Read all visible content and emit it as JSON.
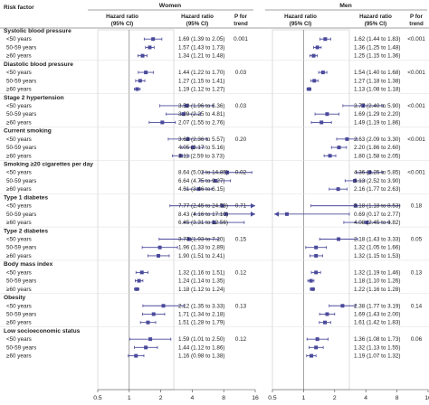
{
  "header": {
    "risk_factor": "Risk factor",
    "women": "Women",
    "men": "Men",
    "hr_line1": "Hazard ratio",
    "hr_line2": "(95% CI)",
    "p_line1": "P for",
    "p_line2": "trend"
  },
  "chart_data": {
    "type": "forest",
    "xscale": "log2",
    "xlim": [
      0.5,
      16
    ],
    "ticks": [
      "0.5",
      "1",
      "2",
      "4",
      "8",
      "16"
    ],
    "reference_line": 1,
    "panels": [
      "Women",
      "Men"
    ],
    "groups": [
      {
        "label": "Systolic blood pressure",
        "women_p": "0.001",
        "men_p": "<0.001",
        "rows": [
          {
            "label": "<50 years",
            "women": {
              "hr": 1.69,
              "lo": 1.39,
              "hi": 2.05,
              "text": "1.69 (1.39 to 2.05)"
            },
            "men": {
              "hr": 1.62,
              "lo": 1.44,
              "hi": 1.83,
              "text": "1.62 (1.44 to 1.83)"
            }
          },
          {
            "label": "50-59 years",
            "women": {
              "hr": 1.57,
              "lo": 1.43,
              "hi": 1.73,
              "text": "1.57 (1.43 to 1.73)"
            },
            "men": {
              "hr": 1.36,
              "lo": 1.25,
              "hi": 1.48,
              "text": "1.36 (1.25 to 1.48)"
            }
          },
          {
            "label": "≥60 years",
            "women": {
              "hr": 1.34,
              "lo": 1.21,
              "hi": 1.48,
              "text": "1.34 (1.21 to 1.48)"
            },
            "men": {
              "hr": 1.25,
              "lo": 1.15,
              "hi": 1.36,
              "text": "1.25 (1.15 to 1.36)"
            }
          }
        ]
      },
      {
        "label": "Diastolic blood pressure",
        "women_p": "0.03",
        "men_p": "<0.001",
        "rows": [
          {
            "label": "<50 years",
            "women": {
              "hr": 1.44,
              "lo": 1.22,
              "hi": 1.7,
              "text": "1.44 (1.22 to 1.70)"
            },
            "men": {
              "hr": 1.54,
              "lo": 1.4,
              "hi": 1.68,
              "text": "1.54 (1.40 to 1.68)"
            }
          },
          {
            "label": "50-59 years",
            "women": {
              "hr": 1.27,
              "lo": 1.15,
              "hi": 1.41,
              "text": "1.27 (1.15 to 1.41)"
            },
            "men": {
              "hr": 1.27,
              "lo": 1.18,
              "hi": 1.38,
              "text": "1.27 (1.18 to 1.38)"
            }
          },
          {
            "label": "≥60 years",
            "women": {
              "hr": 1.19,
              "lo": 1.12,
              "hi": 1.27,
              "text": "1.19 (1.12 to 1.27)"
            },
            "men": {
              "hr": 1.13,
              "lo": 1.08,
              "hi": 1.18,
              "text": "1.13 (1.08 to 1.18)"
            }
          }
        ]
      },
      {
        "label": "Stage 2 hypertension",
        "women_p": "0.03",
        "men_p": "<0.001",
        "rows": [
          {
            "label": "<50 years",
            "women": {
              "hr": 3.53,
              "lo": 1.96,
              "hi": 6.36,
              "text": "3.53 (1.96 to 6.36)"
            },
            "men": {
              "hr": 3.77,
              "lo": 2.4,
              "hi": 5.9,
              "text": "3.77 (2.40 to 5.90)"
            }
          },
          {
            "label": "50-59 years",
            "women": {
              "hr": 3.29,
              "lo": 2.25,
              "hi": 4.81,
              "text": "3.29 (2.25 to 4.81)"
            },
            "men": {
              "hr": 1.69,
              "lo": 1.29,
              "hi": 2.2,
              "text": "1.69 (1.29 to 2.20)"
            }
          },
          {
            "label": "≥60 years",
            "women": {
              "hr": 2.07,
              "lo": 1.55,
              "hi": 2.76,
              "text": "2.07 (1.55 to 2.76)"
            },
            "men": {
              "hr": 1.49,
              "lo": 1.19,
              "hi": 1.86,
              "text": "1.49 (1.19 to 1.86)"
            }
          }
        ]
      },
      {
        "label": "Current smoking",
        "women_p": "0.20",
        "men_p": "<0.001",
        "rows": [
          {
            "label": "<50 years",
            "women": {
              "hr": 3.63,
              "lo": 2.36,
              "hi": 5.57,
              "text": "3.63 (2.36 to 5.57)"
            },
            "men": {
              "hr": 2.63,
              "lo": 2.09,
              "hi": 3.3,
              "text": "2.63 (2.09 to 3.30)"
            }
          },
          {
            "label": "50-59 years",
            "women": {
              "hr": 4.05,
              "lo": 3.17,
              "hi": 5.16,
              "text": "4.05 (3.17 to 5.16)"
            },
            "men": {
              "hr": 2.2,
              "lo": 1.86,
              "hi": 2.6,
              "text": "2.20 (1.86 to 2.60)"
            }
          },
          {
            "label": "≥60 years",
            "women": {
              "hr": 3.11,
              "lo": 2.59,
              "hi": 3.73,
              "text": "3.11 (2.59 to 3.73)"
            },
            "men": {
              "hr": 1.8,
              "lo": 1.58,
              "hi": 2.05,
              "text": "1.80 (1.58 to 2.05)"
            }
          }
        ]
      },
      {
        "label": "Smoking ≥20 cigarettes per day",
        "women_p": "0.02",
        "men_p": "<0.001",
        "rows": [
          {
            "label": "<50 years",
            "women": {
              "hr": 8.64,
              "lo": 5.02,
              "hi": 14.85,
              "text": "8.64 (5.02 to 14.85)"
            },
            "men": {
              "hr": 4.36,
              "lo": 3.25,
              "hi": 5.85,
              "text": "4.36 (3.25 to 5.85)"
            }
          },
          {
            "label": "50-59 years",
            "women": {
              "hr": 6.64,
              "lo": 4.75,
              "hi": 9.27,
              "text": "6.64 (4.75 to 9.27)"
            },
            "men": {
              "hr": 3.13,
              "lo": 2.52,
              "hi": 3.9,
              "text": "3.13 (2.52 to 3.90)"
            }
          },
          {
            "label": "≥60 years",
            "women": {
              "hr": 4.61,
              "lo": 3.46,
              "hi": 6.15,
              "text": "4.61 (3.46 to 6.15)"
            },
            "men": {
              "hr": 2.16,
              "lo": 1.77,
              "hi": 2.63,
              "text": "2.16 (1.77 to 2.63)"
            }
          }
        ]
      },
      {
        "label": "Type 1 diabetes",
        "women_p": "0.71",
        "men_p": "0.18",
        "rows": [
          {
            "label": "<50 years",
            "women": {
              "hr": 7.77,
              "lo": 2.45,
              "hi": 24.58,
              "text": "7.77 (2.45 to 24.58)"
            },
            "men": {
              "hr": 3.18,
              "lo": 1.18,
              "hi": 8.53,
              "text": "3.18 (1.18 to 8.53)"
            }
          },
          {
            "label": "50-59 years",
            "women": {
              "hr": 8.43,
              "lo": 4.16,
              "hi": 17.1,
              "text": "8.43 (4.16 to 17.10)"
            },
            "men": {
              "hr": 0.69,
              "lo": 0.17,
              "hi": 2.77,
              "text": "0.69 (0.17 to 2.77)"
            }
          },
          {
            "label": "≥60 years",
            "women": {
              "hr": 6.45,
              "lo": 3.31,
              "hi": 12.56,
              "text": "6.45 (3.31 to 12.56)"
            },
            "men": {
              "hr": 4.08,
              "lo": 2.45,
              "hi": 6.82,
              "text": "4.08 (2.45 to 6.82)"
            }
          }
        ]
      },
      {
        "label": "Type 2 diabetes",
        "women_p": "0.15",
        "men_p": "0.05",
        "rows": [
          {
            "label": "<50 years",
            "women": {
              "hr": 3.73,
              "lo": 1.93,
              "hi": 7.2,
              "text": "3.73 (1.93 to 7.20)"
            },
            "men": {
              "hr": 2.18,
              "lo": 1.43,
              "hi": 3.33,
              "text": "2.18 (1.43 to 3.33)"
            }
          },
          {
            "label": "50-59 years",
            "women": {
              "hr": 1.96,
              "lo": 1.33,
              "hi": 2.89,
              "text": "1.96 (1.33 to 2.89)"
            },
            "men": {
              "hr": 1.32,
              "lo": 1.05,
              "hi": 1.66,
              "text": "1.32 (1.05 to 1.66)"
            }
          },
          {
            "label": "≥60 years",
            "women": {
              "hr": 1.9,
              "lo": 1.51,
              "hi": 2.41,
              "text": "1.90 (1.51 to 2.41)"
            },
            "men": {
              "hr": 1.32,
              "lo": 1.15,
              "hi": 1.53,
              "text": "1.32 (1.15 to 1.53)"
            }
          }
        ]
      },
      {
        "label": "Body mass index",
        "women_p": "0.12",
        "men_p": "0.13",
        "rows": [
          {
            "label": "<50 years",
            "women": {
              "hr": 1.32,
              "lo": 1.16,
              "hi": 1.51,
              "text": "1.32 (1.16 to 1.51)"
            },
            "men": {
              "hr": 1.32,
              "lo": 1.19,
              "hi": 1.46,
              "text": "1.32 (1.19 to 1.46)"
            }
          },
          {
            "label": "50-59 years",
            "women": {
              "hr": 1.24,
              "lo": 1.14,
              "hi": 1.35,
              "text": "1.24 (1.14 to 1.35)"
            },
            "men": {
              "hr": 1.18,
              "lo": 1.1,
              "hi": 1.26,
              "text": "1.18 (1.10 to 1.26)"
            }
          },
          {
            "label": "≥60 years",
            "women": {
              "hr": 1.18,
              "lo": 1.12,
              "hi": 1.24,
              "text": "1.18 (1.12 to 1.24)"
            },
            "men": {
              "hr": 1.22,
              "lo": 1.16,
              "hi": 1.28,
              "text": "1.22 (1.16 to 1.28)"
            }
          }
        ]
      },
      {
        "label": "Obesity",
        "women_p": "0.13",
        "men_p": "0.14",
        "rows": [
          {
            "label": "<50 years",
            "women": {
              "hr": 2.12,
              "lo": 1.35,
              "hi": 3.33,
              "text": "2.12 (1.35 to 3.33)"
            },
            "men": {
              "hr": 2.38,
              "lo": 1.77,
              "hi": 3.19,
              "text": "2.38 (1.77 to 3.19)"
            }
          },
          {
            "label": "50-59 years",
            "women": {
              "hr": 1.71,
              "lo": 1.34,
              "hi": 2.18,
              "text": "1.71 (1.34 to 2.18)"
            },
            "men": {
              "hr": 1.69,
              "lo": 1.43,
              "hi": 2.0,
              "text": "1.69 (1.43 to 2.00)"
            }
          },
          {
            "label": "≥60 years",
            "women": {
              "hr": 1.51,
              "lo": 1.28,
              "hi": 1.79,
              "text": "1.51 (1.28 to 1.79)"
            },
            "men": {
              "hr": 1.61,
              "lo": 1.42,
              "hi": 1.83,
              "text": "1.61 (1.42 to 1.83)"
            }
          }
        ]
      },
      {
        "label": "Low socioeconomic status",
        "women_p": "0.12",
        "men_p": "0.06",
        "rows": [
          {
            "label": "<50 years",
            "women": {
              "hr": 1.59,
              "lo": 1.01,
              "hi": 2.5,
              "text": "1.59 (1.01 to 2.50)"
            },
            "men": {
              "hr": 1.36,
              "lo": 1.08,
              "hi": 1.73,
              "text": "1.36 (1.08 to 1.73)"
            }
          },
          {
            "label": "50-59 years",
            "women": {
              "hr": 1.44,
              "lo": 1.12,
              "hi": 1.86,
              "text": "1.44 (1.12 to 1.86)"
            },
            "men": {
              "hr": 1.32,
              "lo": 1.13,
              "hi": 1.55,
              "text": "1.32 (1.13 to 1.55)"
            }
          },
          {
            "label": "≥60 years",
            "women": {
              "hr": 1.16,
              "lo": 0.98,
              "hi": 1.38,
              "text": "1.16 (0.98 to 1.38)"
            },
            "men": {
              "hr": 1.19,
              "lo": 1.07,
              "hi": 1.32,
              "text": "1.19 (1.07 to 1.32)"
            }
          }
        ]
      }
    ]
  }
}
